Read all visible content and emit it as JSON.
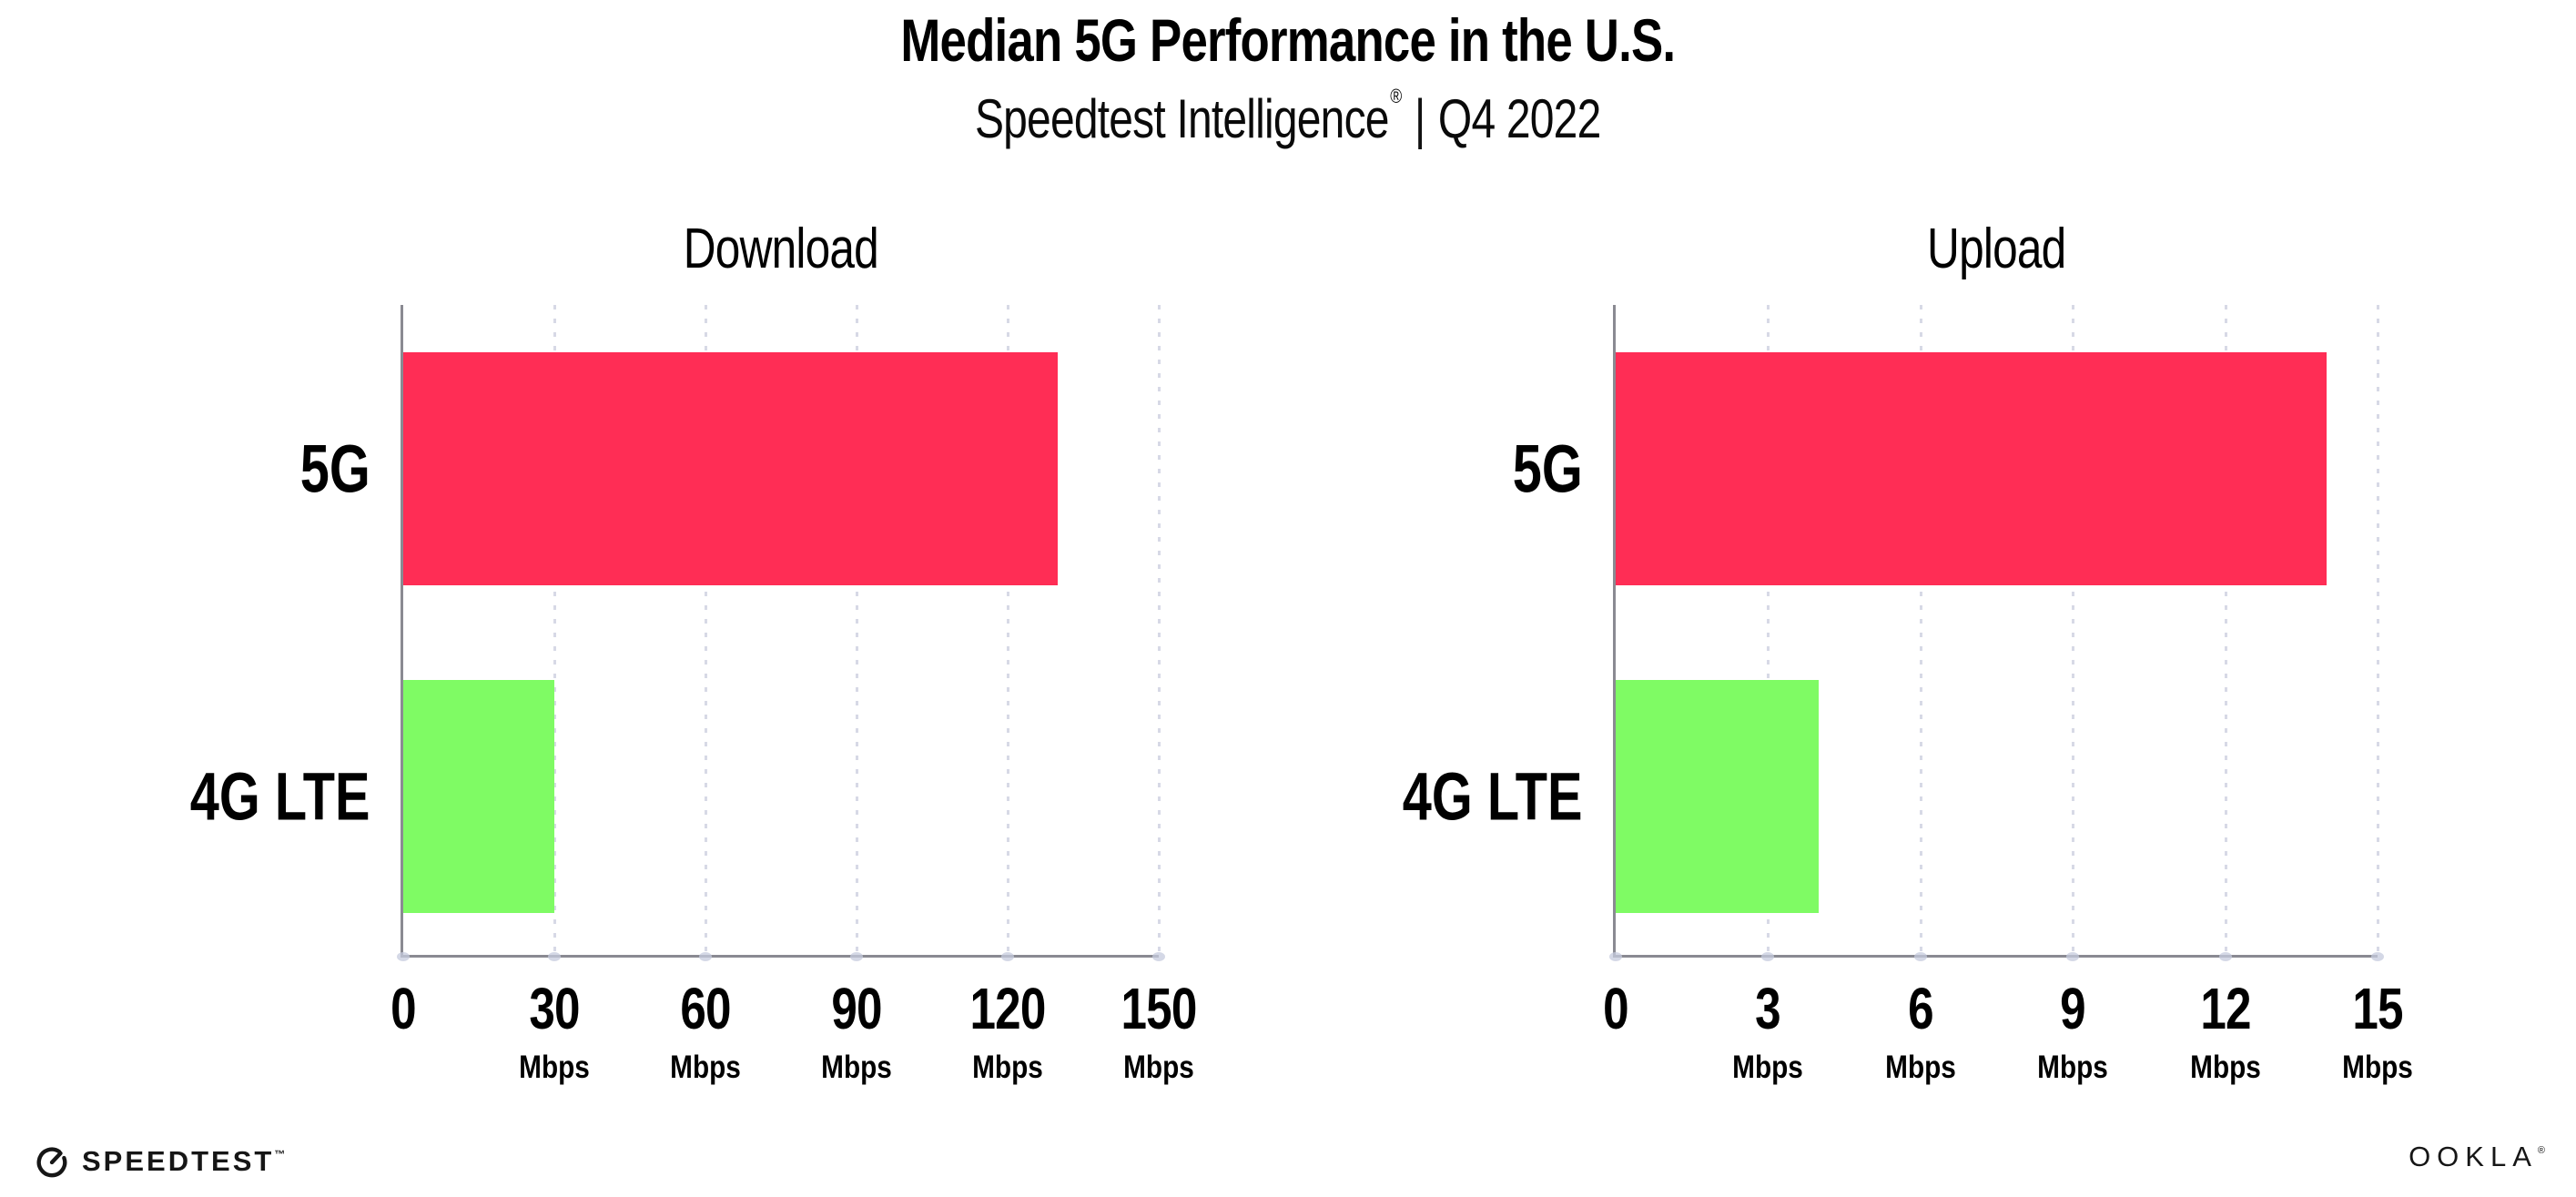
{
  "header": {
    "title": "Median 5G Performance in the U.S.",
    "subtitle_brand": "Speedtest Intelligence",
    "subtitle_reg": "®",
    "subtitle_sep": "|",
    "subtitle_period": "Q4 2022"
  },
  "colors": {
    "bar_5g": "#ff2d55",
    "bar_4g_lte": "#7ffb64",
    "axis_line": "#8a8a92",
    "gridline": "#d7d9e6",
    "text": "#000000",
    "background": "#ffffff"
  },
  "chart_data": [
    {
      "type": "bar",
      "orientation": "horizontal",
      "title": "Download",
      "categories": [
        "5G",
        "4G LTE"
      ],
      "values": [
        130,
        30
      ],
      "unit": "Mbps",
      "xlim": [
        0,
        150
      ],
      "xticks": [
        0,
        30,
        60,
        90,
        120,
        150
      ],
      "bar_colors": [
        "#ff2d55",
        "#7ffb64"
      ],
      "grid": "vertical-dotted",
      "legend": "none"
    },
    {
      "type": "bar",
      "orientation": "horizontal",
      "title": "Upload",
      "categories": [
        "5G",
        "4G LTE"
      ],
      "values": [
        14,
        4
      ],
      "unit": "Mbps",
      "xlim": [
        0,
        15
      ],
      "xticks": [
        0,
        3,
        6,
        9,
        12,
        15
      ],
      "bar_colors": [
        "#ff2d55",
        "#7ffb64"
      ],
      "grid": "vertical-dotted",
      "legend": "none"
    }
  ],
  "footer": {
    "speedtest_label": "SPEEDTEST",
    "speedtest_mark": "™",
    "ookla_label": "OOKLA",
    "ookla_mark": "®"
  }
}
